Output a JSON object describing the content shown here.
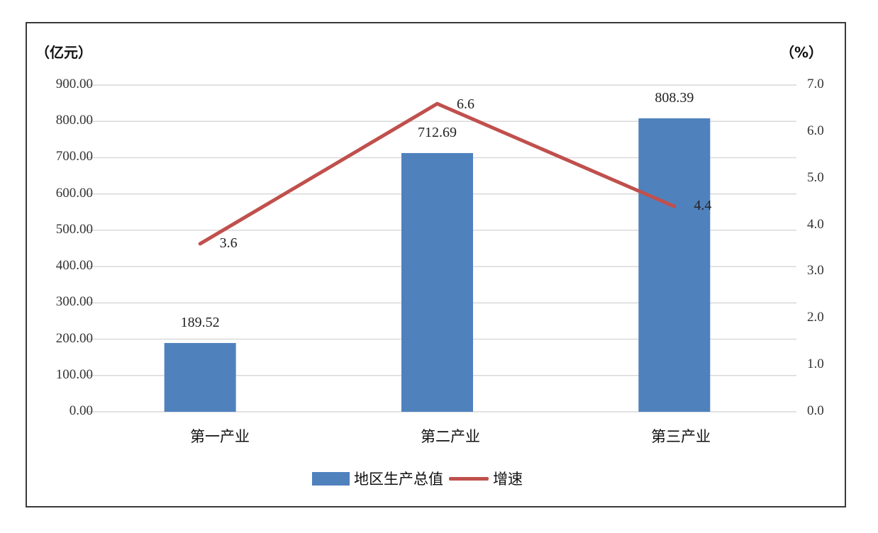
{
  "chart_data": {
    "type": "bar",
    "title": "",
    "categories": [
      "第一产业",
      "第二产业",
      "第三产业"
    ],
    "series": [
      {
        "name": "地区生产总值",
        "type": "bar",
        "axis": "left",
        "color": "#4f81bd",
        "values": [
          189.52,
          712.69,
          808.39
        ]
      },
      {
        "name": "增速",
        "type": "line",
        "axis": "right",
        "color": "#c0504d",
        "values": [
          3.6,
          6.6,
          4.4
        ]
      }
    ],
    "xlabel": "",
    "ylabel": "（亿元）",
    "y2label": "（%）",
    "ylim": [
      0,
      900
    ],
    "y2lim": [
      0,
      7.0
    ],
    "yticks": [
      "0.00",
      "100.00",
      "200.00",
      "300.00",
      "400.00",
      "500.00",
      "600.00",
      "700.00",
      "800.00",
      "900.00"
    ],
    "y2ticks": [
      "0.0",
      "1.0",
      "2.0",
      "3.0",
      "4.0",
      "5.0",
      "6.0",
      "7.0"
    ],
    "grid": true,
    "legend_position": "bottom"
  },
  "labels": {
    "left_unit": "（亿元）",
    "right_unit": "（%）",
    "bar_labels": [
      "189.52",
      "712.69",
      "808.39"
    ],
    "line_labels": [
      "3.6",
      "6.6",
      "4.4"
    ],
    "legend_bar": "地区生产总值",
    "legend_line": "增速"
  }
}
